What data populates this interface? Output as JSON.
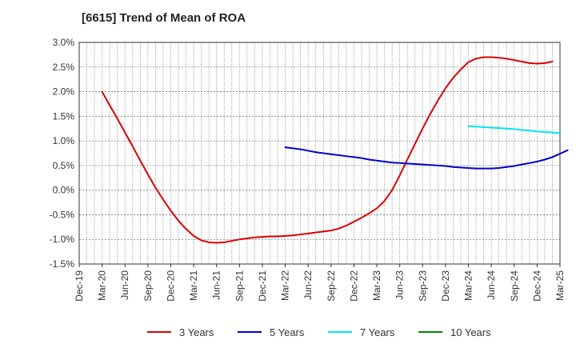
{
  "chart_data": {
    "type": "line",
    "title": "[6615]  Trend of Mean of ROA",
    "xlabel": "",
    "ylabel": "",
    "y_tick_labels": [
      "3.0%",
      "2.5%",
      "2.0%",
      "1.5%",
      "1.0%",
      "0.5%",
      "0.0%",
      "-0.5%",
      "-1.0%",
      "-1.5%"
    ],
    "x_tick_labels": [
      "Dec-19",
      "Mar-20",
      "Jun-20",
      "Sep-20",
      "Dec-20",
      "Mar-21",
      "Jun-21",
      "Sep-21",
      "Dec-21",
      "Mar-22",
      "Jun-22",
      "Sep-22",
      "Dec-22",
      "Mar-23",
      "Jun-23",
      "Sep-23",
      "Dec-23",
      "Mar-24",
      "Jun-24",
      "Sep-24",
      "Dec-24",
      "Mar-25"
    ],
    "ylim": [
      -1.5,
      3.0
    ],
    "grid": true,
    "legend_position": "bottom",
    "series": [
      {
        "name": "3 Years",
        "color": "#dd0000",
        "points": [
          [
            "Mar-20",
            2.0
          ],
          [
            "Apr-20",
            1.72
          ],
          [
            "May-20",
            1.45
          ],
          [
            "Jun-20",
            1.17
          ],
          [
            "Jul-20",
            0.89
          ],
          [
            "Aug-20",
            0.6
          ],
          [
            "Sep-20",
            0.32
          ],
          [
            "Oct-20",
            0.05
          ],
          [
            "Nov-20",
            -0.19
          ],
          [
            "Dec-20",
            -0.42
          ],
          [
            "Jan-21",
            -0.62
          ],
          [
            "Feb-21",
            -0.79
          ],
          [
            "Mar-21",
            -0.93
          ],
          [
            "Apr-21",
            -1.02
          ],
          [
            "May-21",
            -1.06
          ],
          [
            "Jun-21",
            -1.07
          ],
          [
            "Jul-21",
            -1.06
          ],
          [
            "Aug-21",
            -1.03
          ],
          [
            "Sep-21",
            -1.0
          ],
          [
            "Oct-21",
            -0.98
          ],
          [
            "Nov-21",
            -0.96
          ],
          [
            "Dec-21",
            -0.95
          ],
          [
            "Jan-22",
            -0.94
          ],
          [
            "Feb-22",
            -0.94
          ],
          [
            "Mar-22",
            -0.93
          ],
          [
            "Apr-22",
            -0.92
          ],
          [
            "May-22",
            -0.9
          ],
          [
            "Jun-22",
            -0.88
          ],
          [
            "Jul-22",
            -0.86
          ],
          [
            "Aug-22",
            -0.84
          ],
          [
            "Sep-22",
            -0.82
          ],
          [
            "Oct-22",
            -0.78
          ],
          [
            "Nov-22",
            -0.72
          ],
          [
            "Dec-22",
            -0.64
          ],
          [
            "Jan-23",
            -0.56
          ],
          [
            "Feb-23",
            -0.47
          ],
          [
            "Mar-23",
            -0.37
          ],
          [
            "Apr-23",
            -0.22
          ],
          [
            "May-23",
            0.0
          ],
          [
            "Jun-23",
            0.3
          ],
          [
            "Jul-23",
            0.62
          ],
          [
            "Aug-23",
            0.94
          ],
          [
            "Sep-23",
            1.25
          ],
          [
            "Oct-23",
            1.55
          ],
          [
            "Nov-23",
            1.82
          ],
          [
            "Dec-23",
            2.07
          ],
          [
            "Jan-24",
            2.28
          ],
          [
            "Feb-24",
            2.45
          ],
          [
            "Mar-24",
            2.6
          ],
          [
            "Apr-24",
            2.67
          ],
          [
            "May-24",
            2.7
          ],
          [
            "Jun-24",
            2.7
          ],
          [
            "Jul-24",
            2.69
          ],
          [
            "Aug-24",
            2.67
          ],
          [
            "Sep-24",
            2.64
          ],
          [
            "Oct-24",
            2.61
          ],
          [
            "Nov-24",
            2.58
          ],
          [
            "Dec-24",
            2.57
          ],
          [
            "Jan-25",
            2.58
          ],
          [
            "Feb-25",
            2.61
          ]
        ]
      },
      {
        "name": "5 Years",
        "color": "#0000cc",
        "points": [
          [
            "Mar-22",
            0.87
          ],
          [
            "Apr-22",
            0.85
          ],
          [
            "May-22",
            0.83
          ],
          [
            "Jun-22",
            0.8
          ],
          [
            "Jul-22",
            0.77
          ],
          [
            "Aug-22",
            0.75
          ],
          [
            "Sep-22",
            0.73
          ],
          [
            "Oct-22",
            0.71
          ],
          [
            "Nov-22",
            0.69
          ],
          [
            "Dec-22",
            0.67
          ],
          [
            "Jan-23",
            0.65
          ],
          [
            "Feb-23",
            0.62
          ],
          [
            "Mar-23",
            0.6
          ],
          [
            "Apr-23",
            0.58
          ],
          [
            "May-23",
            0.56
          ],
          [
            "Jun-23",
            0.55
          ],
          [
            "Jul-23",
            0.54
          ],
          [
            "Aug-23",
            0.53
          ],
          [
            "Sep-23",
            0.52
          ],
          [
            "Oct-23",
            0.51
          ],
          [
            "Nov-23",
            0.5
          ],
          [
            "Dec-23",
            0.49
          ],
          [
            "Jan-24",
            0.47
          ],
          [
            "Feb-24",
            0.46
          ],
          [
            "Mar-24",
            0.45
          ],
          [
            "Apr-24",
            0.44
          ],
          [
            "May-24",
            0.44
          ],
          [
            "Jun-24",
            0.44
          ],
          [
            "Jul-24",
            0.45
          ],
          [
            "Aug-24",
            0.47
          ],
          [
            "Sep-24",
            0.49
          ],
          [
            "Oct-24",
            0.52
          ],
          [
            "Nov-24",
            0.55
          ],
          [
            "Dec-24",
            0.58
          ],
          [
            "Jan-25",
            0.62
          ],
          [
            "Feb-25",
            0.67
          ],
          [
            "Mar-25",
            0.74
          ],
          [
            "Apr-25",
            0.81
          ]
        ]
      },
      {
        "name": "7 Years",
        "color": "#00e5ee",
        "points": [
          [
            "Mar-24",
            1.3
          ],
          [
            "Apr-24",
            1.29
          ],
          [
            "May-24",
            1.28
          ],
          [
            "Jun-24",
            1.27
          ],
          [
            "Jul-24",
            1.26
          ],
          [
            "Aug-24",
            1.25
          ],
          [
            "Sep-24",
            1.24
          ],
          [
            "Oct-24",
            1.22
          ],
          [
            "Nov-24",
            1.21
          ],
          [
            "Dec-24",
            1.19
          ],
          [
            "Jan-25",
            1.18
          ],
          [
            "Feb-25",
            1.17
          ],
          [
            "Mar-25",
            1.16
          ]
        ]
      },
      {
        "name": "10 Years",
        "color": "#008800",
        "points": []
      }
    ]
  }
}
